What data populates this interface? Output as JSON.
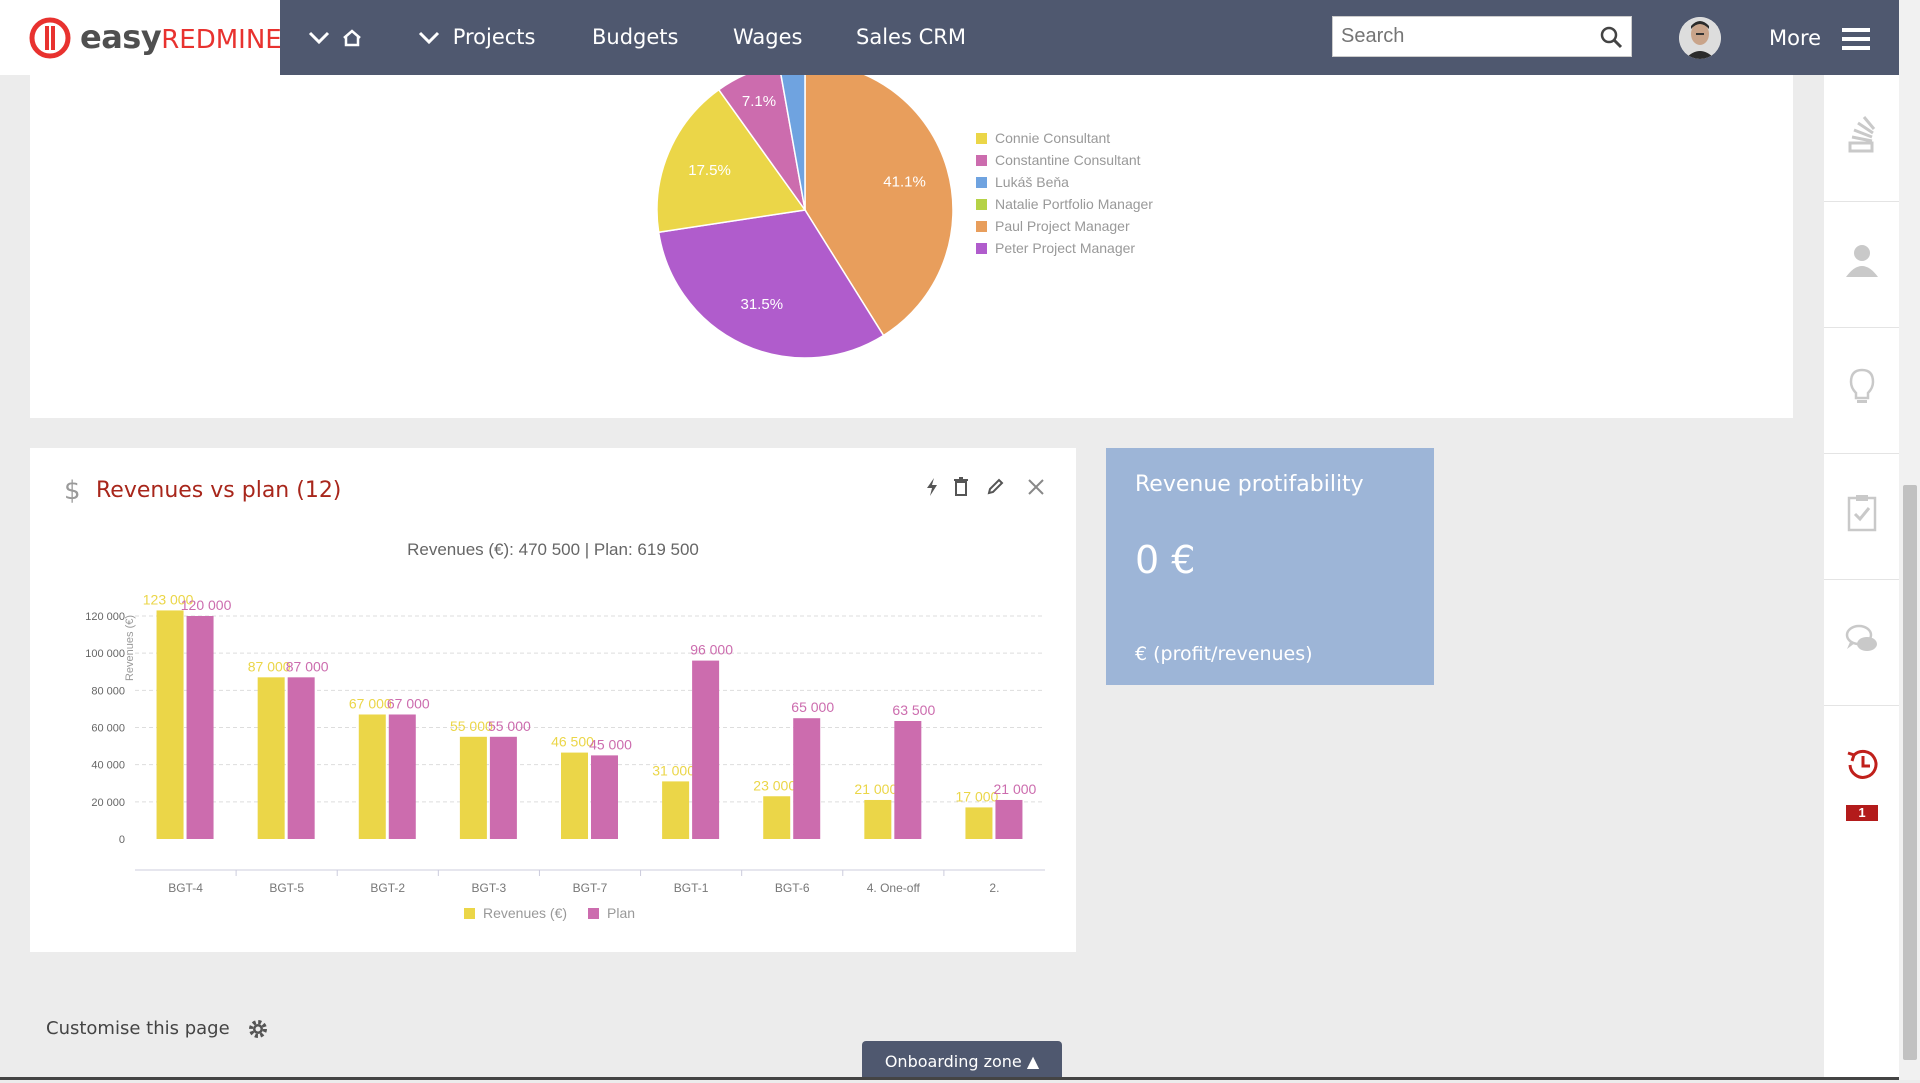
{
  "brand": {
    "part1": "easy",
    "part2": "REDMINE"
  },
  "nav": {
    "projects": "Projects",
    "budgets": "Budgets",
    "wages": "Wages",
    "sales_crm": "Sales CRM",
    "more": "More"
  },
  "search": {
    "placeholder": "Search"
  },
  "pie": {
    "legend": [
      "Connie Consultant",
      "Constantine Consultant",
      "Lukáš Beňa",
      "Natalie Portfolio Manager",
      "Paul Project Manager",
      "Peter Project Manager"
    ]
  },
  "revenues_panel": {
    "title": "Revenues vs plan (12)",
    "subtitle": "Revenues (€): 470 500 | Plan: 619 500"
  },
  "profit_tile": {
    "title": "Revenue protifability",
    "value": "0 €",
    "unit": "€ (profit/revenues)"
  },
  "footer": {
    "customise": "Customise this page",
    "onboarding": "Onboarding zone ▲"
  },
  "sidebar": {
    "badge": "1"
  },
  "colors": {
    "topbar": "#4f586f",
    "accent_red": "#a8261b",
    "revenue": "#ebd648",
    "plan": "#cc6cae",
    "pie_connie": "#ebd648",
    "pie_constantine": "#cc6cae",
    "pie_lukas": "#6fa3e0",
    "pie_natalie": "#b5d246",
    "pie_paul": "#e89e5c",
    "pie_peter": "#b05ccc"
  },
  "chart_data": [
    {
      "type": "pie",
      "slices": [
        {
          "name": "Paul Project Manager",
          "value": 41.1,
          "label": "41.1%"
        },
        {
          "name": "Peter Project Manager",
          "value": 31.5,
          "label": "31.5%"
        },
        {
          "name": "Connie Consultant",
          "value": 17.5,
          "label": "17.5%"
        },
        {
          "name": "Constantine Consultant",
          "value": 7.1,
          "label": "7.1%"
        },
        {
          "name": "Lukáš Beňa",
          "value": 2.8,
          "label": ""
        }
      ],
      "legend_position": "right"
    },
    {
      "type": "bar",
      "title": "Revenues (€): 470 500 | Plan: 619 500",
      "ylabel": "Revenues (€)",
      "categories": [
        "BGT-4",
        "BGT-5",
        "BGT-2",
        "BGT-3",
        "BGT-7",
        "BGT-1",
        "BGT-6",
        "4. One-off",
        "2."
      ],
      "series": [
        {
          "name": "Revenues (€)",
          "values": [
            123000,
            87000,
            67000,
            55000,
            46500,
            31000,
            23000,
            21000,
            17000
          ],
          "labels": [
            "123 000",
            "87 000",
            "67 000",
            "55 000",
            "46 500",
            "31 000",
            "23 000",
            "21 000",
            "17 000"
          ]
        },
        {
          "name": "Plan",
          "values": [
            120000,
            87000,
            67000,
            55000,
            45000,
            96000,
            65000,
            63500,
            21000
          ],
          "labels": [
            "120 000",
            "87 000",
            "67 000",
            "55 000",
            "45 000",
            "96 000",
            "65 000",
            "63 500",
            "21 000"
          ]
        }
      ],
      "yticks": [
        "0",
        "20 000",
        "40 000",
        "60 000",
        "80 000",
        "100 000",
        "120 000"
      ],
      "ylim": [
        0,
        120000
      ],
      "grid": true,
      "legend_position": "bottom"
    }
  ]
}
